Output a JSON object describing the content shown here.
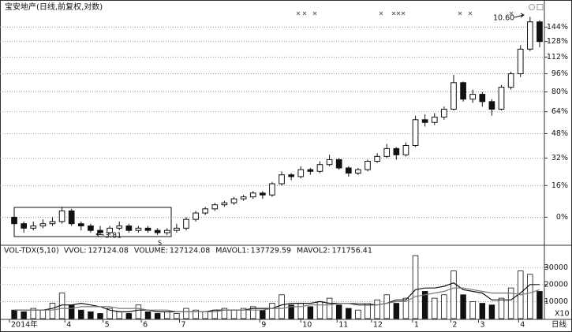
{
  "chart_data": {
    "type": "candlestick",
    "title": "宝安地产(日线,前复权,对数)",
    "log_scale": true,
    "grid": true,
    "xlim": [
      -0.5,
      55.5
    ],
    "xticks": [
      {
        "value": -0.5,
        "label": "2014年"
      },
      {
        "value": 5.3,
        "label": "4"
      },
      {
        "value": 9.3,
        "label": "5"
      },
      {
        "value": 13.3,
        "label": "6"
      },
      {
        "value": 17.3,
        "label": "7"
      },
      {
        "value": 25.7,
        "label": "9"
      },
      {
        "value": 30,
        "label": "10"
      },
      {
        "value": 33.8,
        "label": "11"
      },
      {
        "value": 37.4,
        "label": "12"
      },
      {
        "value": 41.7,
        "label": "1"
      },
      {
        "value": 45.7,
        "label": "2"
      },
      {
        "value": 48.6,
        "label": "3"
      },
      {
        "value": 52.8,
        "label": "4"
      }
    ],
    "period_label": "日线",
    "ylim": [
      -12,
      175
    ],
    "yticks": [
      {
        "value": 0,
        "label": "0%"
      },
      {
        "value": 16,
        "label": "16%"
      },
      {
        "value": 32,
        "label": "32%"
      },
      {
        "value": 48,
        "label": "48%"
      },
      {
        "value": 64,
        "label": "64%"
      },
      {
        "value": 80,
        "label": "80%"
      },
      {
        "value": 96,
        "label": "96%"
      },
      {
        "value": 112,
        "label": "112%"
      },
      {
        "value": 128,
        "label": "128%"
      },
      {
        "value": 144,
        "label": "144%"
      }
    ],
    "annotations": [
      "3.81",
      "10.60",
      "S"
    ],
    "open": [
      0,
      -3,
      -5,
      -4,
      -3,
      -2,
      3,
      -3,
      -4,
      -6,
      -7,
      -5,
      -4,
      -6,
      -5,
      -6,
      -7,
      -6,
      -5,
      -1,
      2,
      4,
      6,
      7,
      9,
      10,
      12,
      11,
      17,
      22,
      21,
      25,
      24,
      28,
      31,
      26,
      23,
      25,
      30,
      33,
      38,
      34,
      40,
      58,
      56,
      60,
      66,
      88,
      74,
      78,
      72,
      66,
      84,
      96,
      120,
      150
    ],
    "high": [
      2,
      -2,
      -2,
      -1,
      0,
      5,
      4,
      -2,
      -3,
      -4,
      -4,
      -2,
      -3,
      -4,
      -4,
      -5,
      -5,
      -3,
      0,
      3,
      5,
      7,
      8,
      10,
      11,
      13,
      13,
      18,
      24,
      23,
      27,
      26,
      30,
      34,
      32,
      27,
      26,
      31,
      35,
      41,
      39,
      42,
      61,
      62,
      63,
      68,
      95,
      89,
      82,
      80,
      74,
      86,
      98,
      124,
      156,
      152
    ],
    "low": [
      -5,
      -7,
      -6,
      -5,
      -4,
      -3,
      -4,
      -6,
      -7,
      -8,
      -8,
      -6,
      -7,
      -7,
      -7,
      -8,
      -8,
      -7,
      -6,
      -2,
      1,
      3,
      5,
      6,
      8,
      9,
      9,
      10,
      16,
      19,
      20,
      22,
      23,
      27,
      25,
      21,
      22,
      24,
      29,
      32,
      31,
      33,
      39,
      53,
      54,
      58,
      65,
      72,
      71,
      68,
      61,
      65,
      82,
      93,
      118,
      122
    ],
    "close": [
      -3,
      -5,
      -4,
      -3,
      -2,
      3,
      -3,
      -4,
      -6,
      -7,
      -5,
      -4,
      -6,
      -5,
      -6,
      -7,
      -6,
      -5,
      -1,
      2,
      4,
      6,
      7,
      9,
      10,
      12,
      11,
      17,
      22,
      21,
      25,
      24,
      28,
      31,
      26,
      23,
      25,
      30,
      33,
      38,
      34,
      40,
      58,
      56,
      60,
      66,
      88,
      74,
      78,
      72,
      66,
      84,
      96,
      120,
      150,
      128
    ],
    "volume": {
      "indicator": "VOL-TDX(5,10)",
      "readouts": [
        {
          "name": "VVOL:",
          "value": 127124.08
        },
        {
          "name": "VOLUME:",
          "value": 127124.08
        },
        {
          "name": "MAVOL1:",
          "value": 137729.59,
          "color": "#111111",
          "values": [
            5000,
            5000,
            5000,
            5000,
            6000,
            8000,
            8000,
            9000,
            8000,
            7000,
            5000,
            4000,
            4000,
            5000,
            5000,
            4000,
            4000,
            4000,
            4000,
            4000,
            4000,
            5000,
            5000,
            5000,
            5000,
            6000,
            6000,
            6000,
            8000,
            9000,
            9000,
            9000,
            10000,
            9000,
            9000,
            9000,
            8000,
            8000,
            8000,
            9000,
            11000,
            11000,
            17000,
            18000,
            18000,
            19000,
            21000,
            17000,
            16000,
            15000,
            11000,
            11000,
            11000,
            15000,
            20000,
            20000
          ]
        },
        {
          "name": "MAVOL2:",
          "value": 171756.41,
          "color": "#777777",
          "values": [
            5000,
            5000,
            5000,
            5000,
            5000,
            6000,
            6000,
            7000,
            7000,
            7000,
            7000,
            6000,
            6000,
            6000,
            5000,
            5000,
            5000,
            4000,
            4000,
            4000,
            4000,
            4000,
            5000,
            5000,
            5000,
            5000,
            5000,
            6000,
            6000,
            7000,
            7000,
            8000,
            8000,
            8000,
            9000,
            9000,
            9000,
            9000,
            8000,
            9000,
            10000,
            10000,
            13000,
            14000,
            15000,
            16000,
            18000,
            18000,
            17000,
            16000,
            15000,
            15000,
            15000,
            14000,
            15000,
            17000
          ]
        }
      ],
      "values": [
        5000,
        4000,
        6000,
        5000,
        9000,
        15000,
        8000,
        5000,
        4000,
        3000,
        6000,
        4000,
        3000,
        8000,
        4000,
        3000,
        4000,
        3000,
        6000,
        5000,
        4000,
        5000,
        6000,
        5000,
        6000,
        7000,
        5000,
        9000,
        14000,
        8000,
        9000,
        7000,
        10000,
        12000,
        8000,
        6000,
        5000,
        9000,
        11000,
        14000,
        9000,
        12000,
        37000,
        16000,
        12000,
        14000,
        28000,
        14000,
        10000,
        9000,
        8000,
        12000,
        18000,
        28000,
        26000,
        16000
      ],
      "ylim": [
        0,
        38000
      ],
      "yticks": [
        10000,
        20000,
        30000
      ],
      "unit_label": "X10"
    }
  }
}
